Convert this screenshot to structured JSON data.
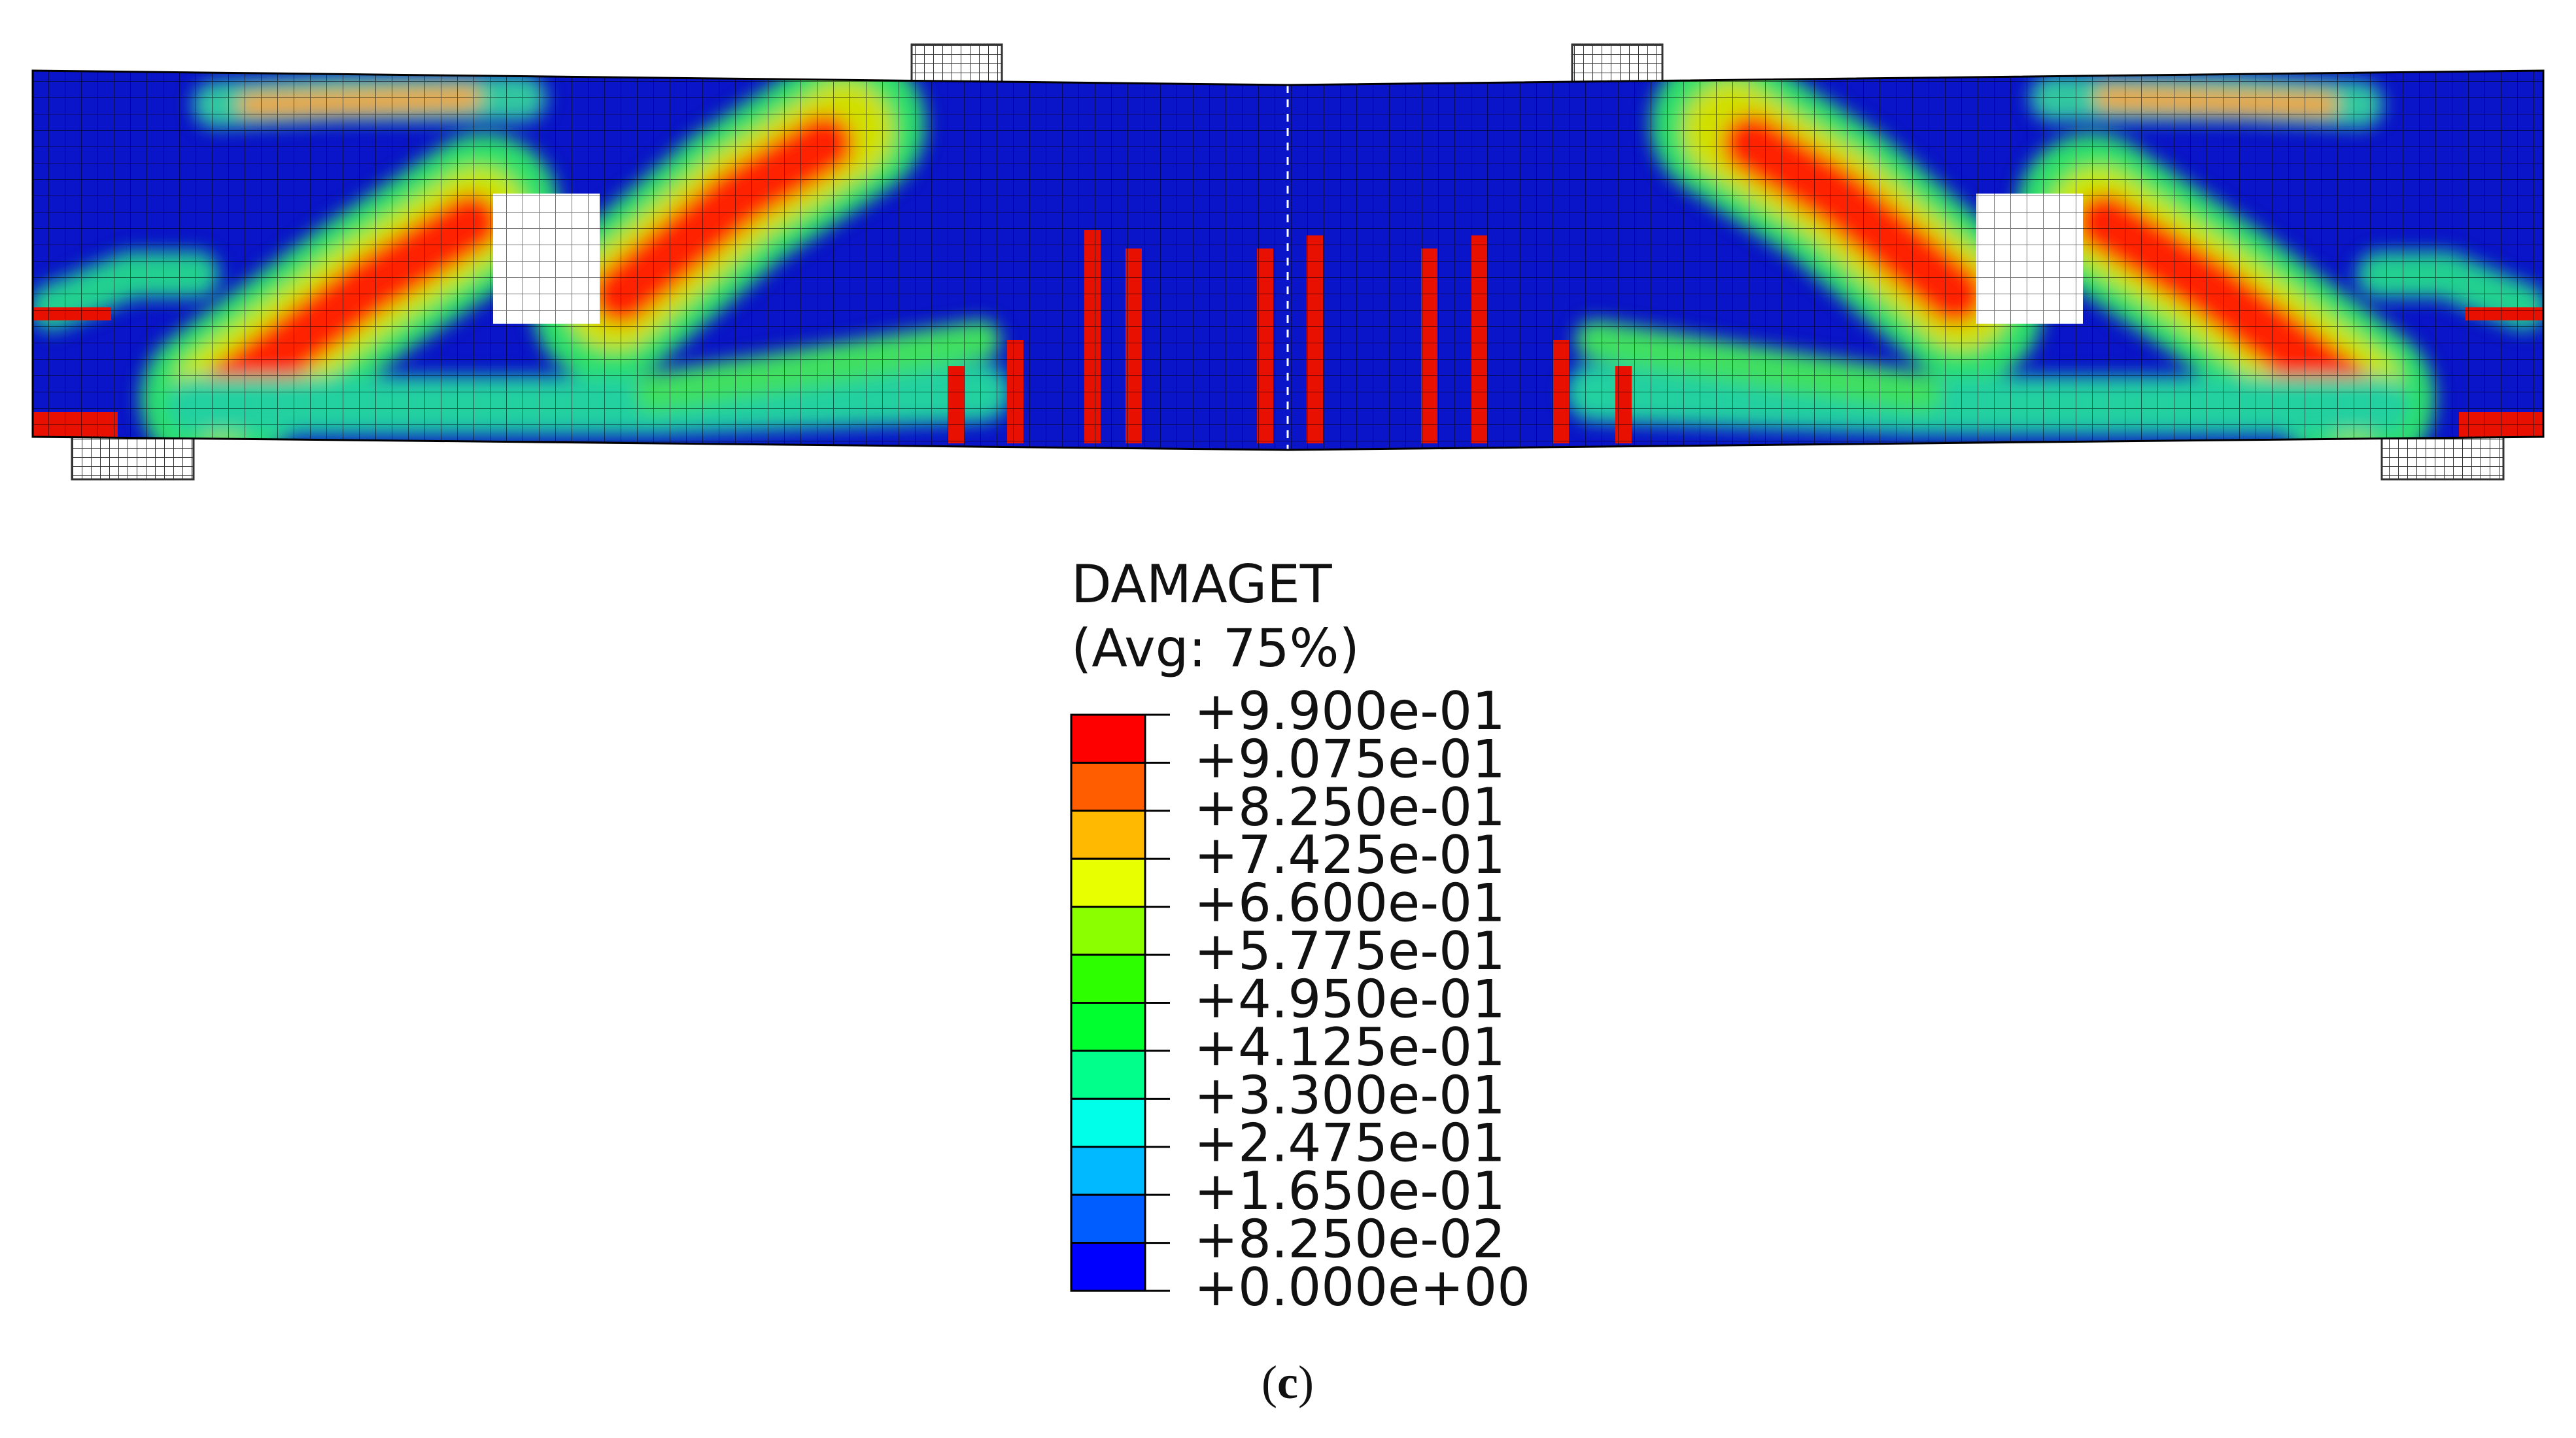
{
  "legend": {
    "title": "DAMAGET",
    "subtitle": "(Avg: 75%)",
    "labels": [
      "+9.900e-01",
      "+9.075e-01",
      "+8.250e-01",
      "+7.425e-01",
      "+6.600e-01",
      "+5.775e-01",
      "+4.950e-01",
      "+4.125e-01",
      "+3.300e-01",
      "+2.475e-01",
      "+1.650e-01",
      "+8.250e-02",
      "+0.000e+00"
    ],
    "colors": [
      "#ff0000",
      "#ff5d00",
      "#ffb900",
      "#e8ff00",
      "#8bff00",
      "#2eff00",
      "#00ff2e",
      "#00ff8b",
      "#00ffe8",
      "#00b9ff",
      "#005dff",
      "#0000ff"
    ]
  },
  "caption": [
    "(",
    "c",
    ")"
  ]
}
